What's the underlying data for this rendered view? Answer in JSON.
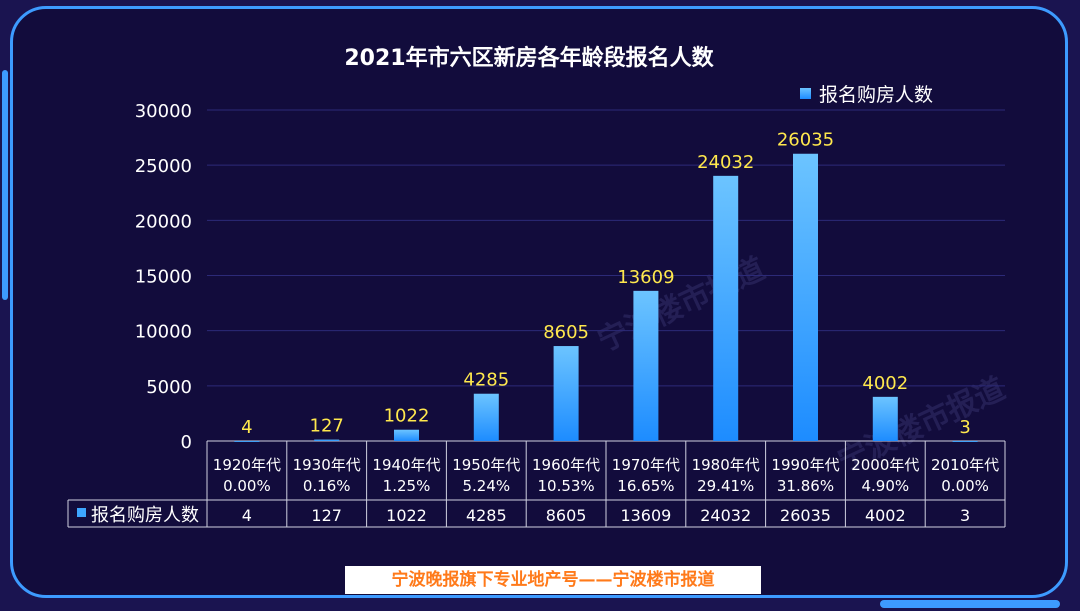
{
  "chart_data": {
    "type": "bar",
    "title": "2021年市六区新房各年龄段报名人数",
    "legend": "报名购房人数",
    "ylim": [
      0,
      30000
    ],
    "yticks": [
      0,
      5000,
      10000,
      15000,
      20000,
      25000,
      30000
    ],
    "categories": [
      "1920年代",
      "1930年代",
      "1940年代",
      "1950年代",
      "1960年代",
      "1970年代",
      "1980年代",
      "1990年代",
      "2000年代",
      "2010年代"
    ],
    "percentages": [
      "0.00%",
      "0.16%",
      "1.25%",
      "5.24%",
      "10.53%",
      "16.65%",
      "29.41%",
      "31.86%",
      "4.90%",
      "0.00%"
    ],
    "series": [
      {
        "name": "报名购房人数",
        "values": [
          4,
          127,
          1022,
          4285,
          8605,
          13609,
          24032,
          26035,
          4002,
          3
        ]
      }
    ],
    "table_row_label": "报名购房人数",
    "grid": true,
    "legend_position": "top-right",
    "bar_color_top": "#6cc4ff",
    "bar_color_bottom": "#1d8cff",
    "label_color": "#ffe84d"
  },
  "footer": "宁波晚报旗下专业地产号——宁波楼市报道",
  "watermark": "宁波楼市报道"
}
